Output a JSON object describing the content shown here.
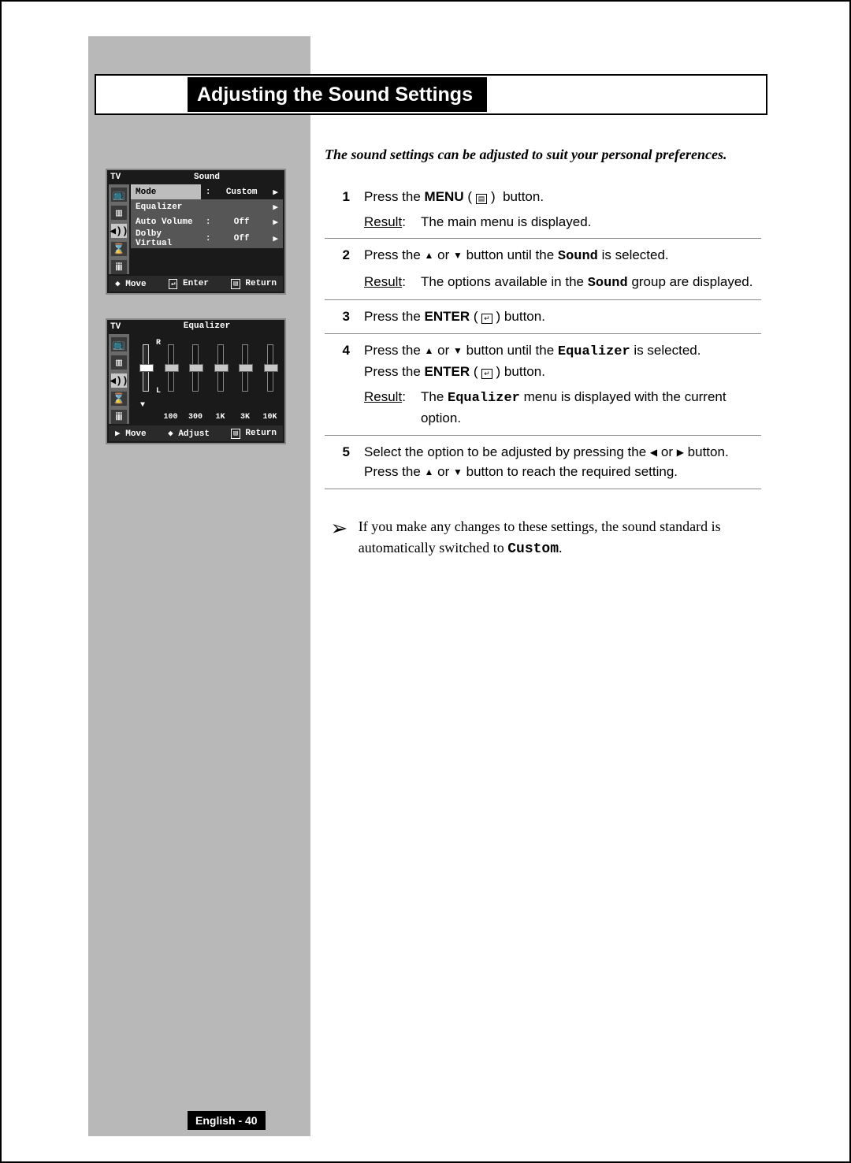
{
  "title": "Adjusting the Sound Settings",
  "intro": "The sound settings can be adjusted to suit your personal preferences.",
  "steps": [
    {
      "num": "1",
      "body": "Press the <b>MENU</b> ( <span class='kbd-icon'>&#9636;</span> )&nbsp; button.",
      "result_label": "Result",
      "result": "The main menu is displayed."
    },
    {
      "num": "2",
      "body": "Press the <span class='arrow-tri'>&#9650;</span> or <span class='arrow-tri'>&#9660;</span> button until the <b class='mono'>Sound</b> is selected.",
      "result_label": "Result",
      "result": "The options available in the <b class='mono'>Sound</b> group are displayed."
    },
    {
      "num": "3",
      "body": "Press the <b>ENTER</b> ( <span class='kbd-icon'>&#8629;</span> ) button.",
      "result_label": null,
      "result": null
    },
    {
      "num": "4",
      "body": "Press the <span class='arrow-tri'>&#9650;</span> or <span class='arrow-tri'>&#9660;</span> button until the <b class='mono'>Equalizer</b> is selected.<br>Press the <b>ENTER</b> ( <span class='kbd-icon'>&#8629;</span> ) button.",
      "result_label": "Result",
      "result": "The <b class='mono'>Equalizer</b> menu is displayed with the current option."
    },
    {
      "num": "5",
      "body": "Select the option to be adjusted by pressing the <span class='arrow-tri'>&#9664;</span> or <span class='arrow-tri'>&#9654;</span> button.<br>Press the <span class='arrow-tri'>&#9650;</span> or <span class='arrow-tri'>&#9660;</span> button to reach the required setting.",
      "result_label": null,
      "result": null
    }
  ],
  "note": "If you make any changes to these settings, the sound standard is automatically switched to <b class='mono'>Custom</b>.",
  "page_tag": "English - 40",
  "osd1": {
    "sidebar_label": "TV",
    "header": "Sound",
    "rows": [
      {
        "label": "Mode",
        "value": "Custom",
        "sel": true
      },
      {
        "label": "Equalizer",
        "value": "",
        "sel": false,
        "dk": true
      },
      {
        "label": "Auto Volume",
        "value": "Off",
        "sel": false,
        "dk": true
      },
      {
        "label": "Dolby Virtual",
        "value": "Off",
        "sel": false,
        "dk": true
      }
    ],
    "footer": {
      "move": "Move",
      "enter": "Enter",
      "return": "Return"
    }
  },
  "osd2": {
    "sidebar_label": "TV",
    "header": "Equalizer",
    "rl_top": "R",
    "rl_bot": "L",
    "bands": [
      "",
      "100",
      "300",
      "1K",
      "3K",
      "10K"
    ],
    "selected_band": 0,
    "lr_selected": true,
    "footer": {
      "move": "Move",
      "adjust": "Adjust",
      "return": "Return"
    }
  },
  "sidebar_icons": [
    "📺",
    "▥",
    "◀))",
    "⌛",
    "ᎥᎥᎥ"
  ],
  "colors": {
    "page_border": "#000000",
    "gray_col": "#b8b8b8",
    "osd_bg": "#1a1a1a",
    "osd_sidebar": "#6a6a6a",
    "osd_row_dark": "#565656",
    "osd_row_sel": "#bdbdbd",
    "separator": "#8a8a8a"
  }
}
